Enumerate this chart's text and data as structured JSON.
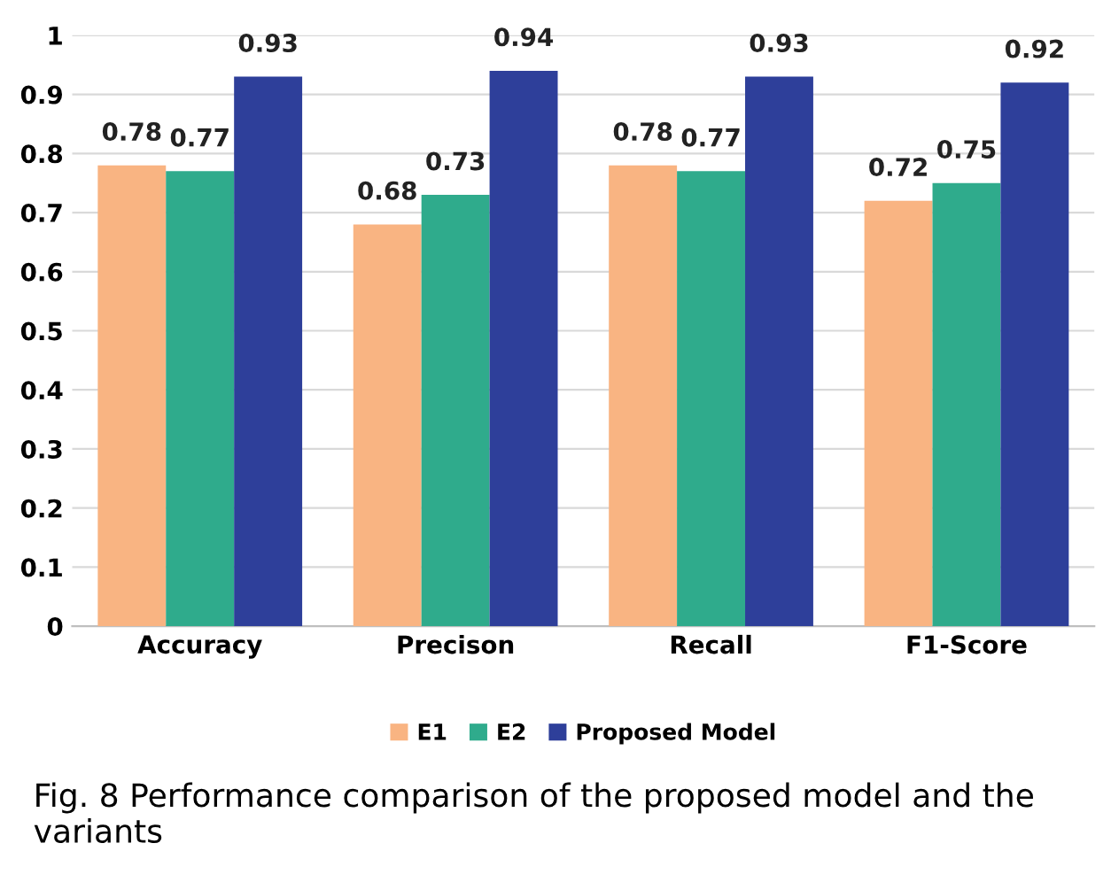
{
  "chart_data": {
    "type": "bar",
    "categories": [
      "Accuracy",
      "Precison",
      "Recall",
      "F1-Score"
    ],
    "series": [
      {
        "name": "E1",
        "color": "#f9b482",
        "values": [
          0.78,
          0.68,
          0.78,
          0.72
        ]
      },
      {
        "name": "E2",
        "color": "#2fab8c",
        "values": [
          0.77,
          0.73,
          0.77,
          0.75
        ]
      },
      {
        "name": "Proposed Model",
        "color": "#2e3f9a",
        "values": [
          0.93,
          0.94,
          0.93,
          0.92
        ]
      }
    ],
    "ylim": [
      0,
      1
    ],
    "yticks": [
      0,
      0.1,
      0.2,
      0.3,
      0.4,
      0.5,
      0.6,
      0.7,
      0.8,
      0.9,
      1
    ],
    "grid": "y",
    "legend": "bottom",
    "data_labels": true,
    "annotations": [
      "Fig. 8 Performance comparison of the proposed model and the variants"
    ]
  }
}
